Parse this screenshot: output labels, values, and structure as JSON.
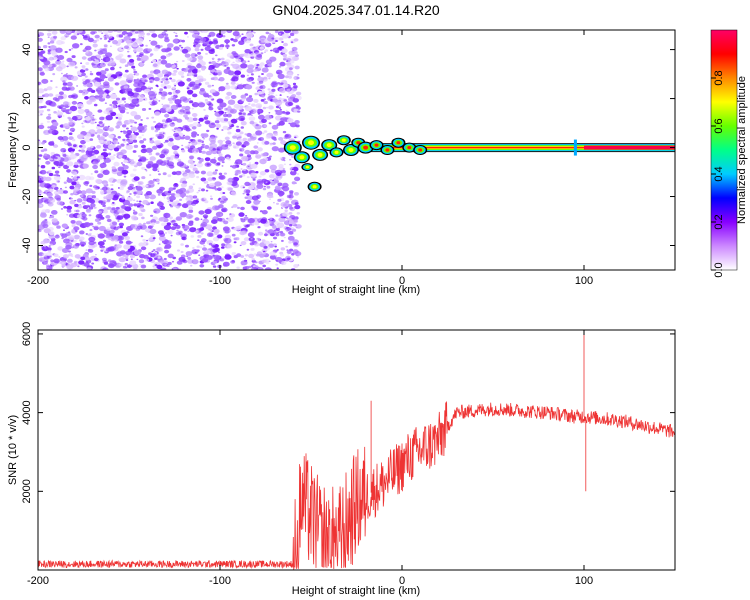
{
  "title": "GN04.2025.347.01.14.R20",
  "chart_data": [
    {
      "type": "heatmap",
      "xlabel": "Height of straight line (km)",
      "ylabel": "Frequency (Hz)",
      "xlim": [
        -200,
        150
      ],
      "ylim": [
        -50,
        48
      ],
      "x_ticks": [
        -200,
        -100,
        0,
        100
      ],
      "y_ticks": [
        -40,
        -20,
        0,
        20,
        40
      ],
      "noise_region_x": [
        -200,
        -60
      ],
      "spectral_line": {
        "frequency": 0,
        "x_start": -60,
        "x_end": 150
      },
      "colorbar": {
        "label": "Normalized spectral amplitude",
        "range": [
          0,
          1
        ],
        "ticks": [
          0.0,
          0.2,
          0.4,
          0.6,
          0.8
        ],
        "tick_labels": [
          "0.0",
          "0.2",
          "0.4",
          "0.6",
          "0.8"
        ],
        "colors": [
          "#ffffff",
          "#cc88ff",
          "#8800ff",
          "#0000ff",
          "#00ccff",
          "#00ff88",
          "#66ff00",
          "#ffff00",
          "#ff8800",
          "#ff0000",
          "#ff0066"
        ]
      }
    },
    {
      "type": "line",
      "xlabel": "Height of straight line (km)",
      "ylabel": "SNR (10 * v/v)",
      "xlim": [
        -200,
        150
      ],
      "ylim": [
        0,
        6100
      ],
      "x_ticks": [
        -200,
        -100,
        0,
        100
      ],
      "y_ticks": [
        2000,
        4000,
        6000
      ],
      "color": "#ee3333",
      "series_profile": [
        {
          "x": -200,
          "y": 150
        },
        {
          "x": -60,
          "y": 150
        },
        {
          "x": -55,
          "y": 1800
        },
        {
          "x": -45,
          "y": 900
        },
        {
          "x": -35,
          "y": 700
        },
        {
          "x": -25,
          "y": 1700
        },
        {
          "x": -10,
          "y": 2200
        },
        {
          "x": 5,
          "y": 2900
        },
        {
          "x": 20,
          "y": 3300
        },
        {
          "x": 30,
          "y": 4000
        },
        {
          "x": 50,
          "y": 4100
        },
        {
          "x": 80,
          "y": 4000
        },
        {
          "x": 95,
          "y": 3900
        },
        {
          "x": 100,
          "y": 3900
        },
        {
          "x": 120,
          "y": 3800
        },
        {
          "x": 150,
          "y": 3500
        }
      ],
      "spikes": [
        {
          "x": -17,
          "y": 4300
        },
        {
          "x": 100,
          "y": 6000
        },
        {
          "x": 101,
          "y": 2000
        }
      ]
    }
  ]
}
